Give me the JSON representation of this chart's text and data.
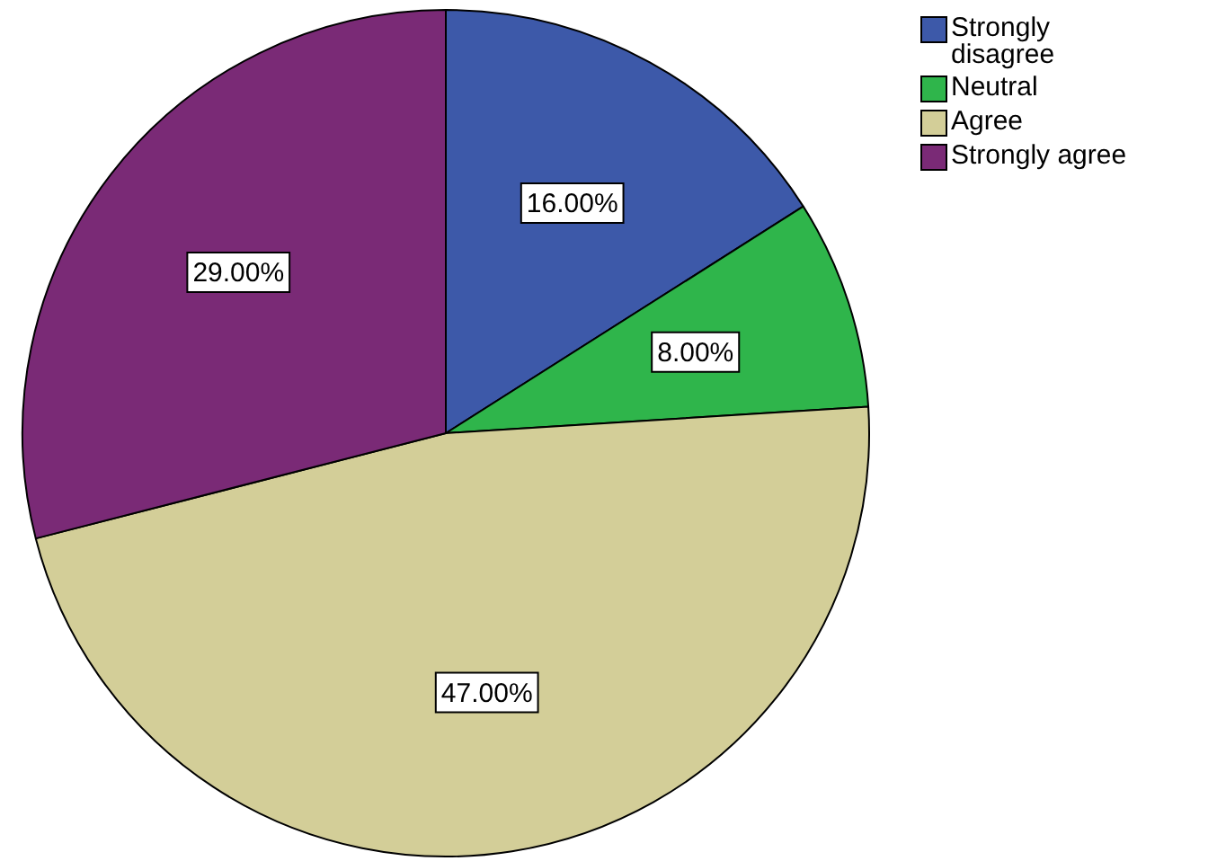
{
  "chart_data": {
    "type": "pie",
    "categories": [
      "Strongly disagree",
      "Neutral",
      "Agree",
      "Strongly agree"
    ],
    "values": [
      16,
      8,
      47,
      29
    ],
    "colors": [
      "#3d59a9",
      "#2fb54b",
      "#d3ce98",
      "#7a2a76"
    ],
    "value_labels": [
      "16.00%",
      "8.00%",
      "47.00%",
      "29.00%"
    ],
    "legend": "top right"
  }
}
